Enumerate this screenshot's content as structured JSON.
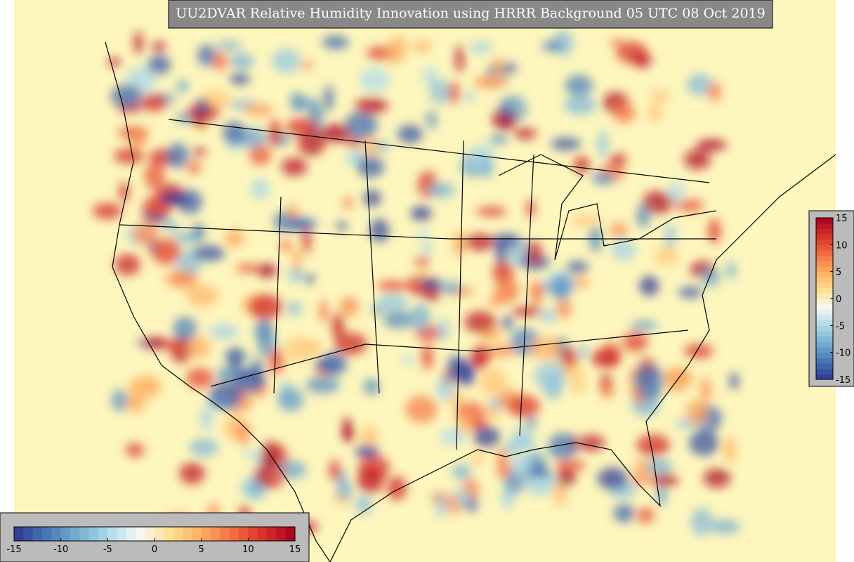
{
  "title": "UU2DVAR Relative Humidity Innovation using HRRR Background 05 UTC 08 Oct 2019",
  "colorbar": {
    "colors": [
      "#313695",
      "#4575b4",
      "#74add1",
      "#abd9e9",
      "#f7f7f7",
      "#fee090",
      "#fdae61",
      "#f46d43",
      "#d73027",
      "#a50026"
    ]
  },
  "horizontal_colorbar": {
    "range": [
      -15,
      15
    ],
    "ticks": [
      -15,
      -10,
      -5,
      0,
      5,
      10,
      15
    ]
  },
  "vertical_colorbar": {
    "range": [
      -15,
      15
    ],
    "ticks": [
      15,
      10,
      5,
      0,
      -5,
      -10,
      -15
    ]
  }
}
